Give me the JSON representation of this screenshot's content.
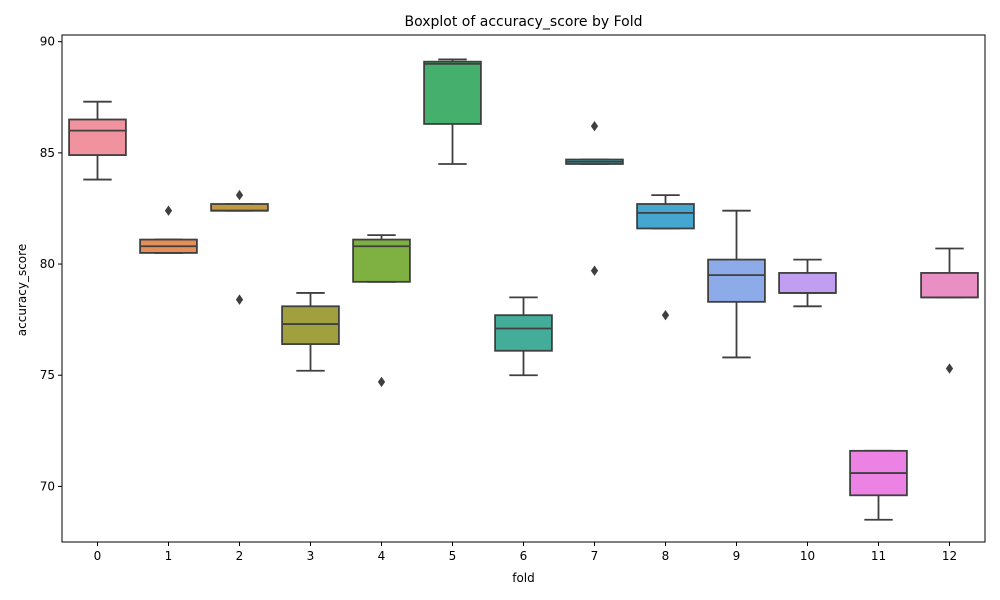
{
  "chart_data": {
    "type": "boxplot",
    "title": "Boxplot of accuracy_score by Fold",
    "xlabel": "fold",
    "ylabel": "accuracy_score",
    "ylim": [
      67.5,
      90.3
    ],
    "yticks": [
      70,
      75,
      80,
      85,
      90
    ],
    "grid": false,
    "categories": [
      "0",
      "1",
      "2",
      "3",
      "4",
      "5",
      "6",
      "7",
      "8",
      "9",
      "10",
      "11",
      "12"
    ],
    "colors": [
      "#f0939e",
      "#e68e58",
      "#c09a3d",
      "#a0a03f",
      "#7fb042",
      "#45b06e",
      "#44ad9a",
      "#45aab4",
      "#45a7d1",
      "#8cabe8",
      "#c09ff0",
      "#ec82e4",
      "#e98fc3"
    ],
    "boxes": [
      {
        "fold": "0",
        "whislo": 83.8,
        "q1": 84.9,
        "med": 86.0,
        "q3": 86.5,
        "whishi": 87.3,
        "fliers": []
      },
      {
        "fold": "1",
        "whislo": 80.5,
        "q1": 80.5,
        "med": 80.8,
        "q3": 81.1,
        "whishi": 81.1,
        "fliers": [
          82.4
        ]
      },
      {
        "fold": "2",
        "whislo": 82.4,
        "q1": 82.4,
        "med": 82.4,
        "q3": 82.7,
        "whishi": 82.7,
        "fliers": [
          83.1,
          78.4
        ]
      },
      {
        "fold": "3",
        "whislo": 75.2,
        "q1": 76.4,
        "med": 77.3,
        "q3": 78.1,
        "whishi": 78.7,
        "fliers": []
      },
      {
        "fold": "4",
        "whislo": 79.2,
        "q1": 79.2,
        "med": 80.8,
        "q3": 81.1,
        "whishi": 81.3,
        "fliers": [
          74.7
        ]
      },
      {
        "fold": "5",
        "whislo": 84.5,
        "q1": 86.3,
        "med": 89.0,
        "q3": 89.1,
        "whishi": 89.2,
        "fliers": []
      },
      {
        "fold": "6",
        "whislo": 75.0,
        "q1": 76.1,
        "med": 77.1,
        "q3": 77.7,
        "whishi": 78.5,
        "fliers": []
      },
      {
        "fold": "7",
        "whislo": 84.5,
        "q1": 84.5,
        "med": 84.6,
        "q3": 84.7,
        "whishi": 84.7,
        "fliers": [
          86.2,
          79.7
        ]
      },
      {
        "fold": "8",
        "whislo": 81.6,
        "q1": 81.6,
        "med": 82.3,
        "q3": 82.7,
        "whishi": 83.1,
        "fliers": [
          77.7
        ]
      },
      {
        "fold": "9",
        "whislo": 75.8,
        "q1": 78.3,
        "med": 79.5,
        "q3": 80.2,
        "whishi": 82.4,
        "fliers": []
      },
      {
        "fold": "10",
        "whislo": 78.1,
        "q1": 78.7,
        "med": 78.7,
        "q3": 79.6,
        "whishi": 80.2,
        "fliers": []
      },
      {
        "fold": "11",
        "whislo": 68.5,
        "q1": 69.6,
        "med": 70.6,
        "q3": 71.6,
        "whishi": 71.6,
        "fliers": []
      },
      {
        "fold": "12",
        "whislo": 78.5,
        "q1": 78.5,
        "med": 78.5,
        "q3": 79.6,
        "whishi": 80.7,
        "fliers": [
          75.3
        ]
      }
    ]
  }
}
